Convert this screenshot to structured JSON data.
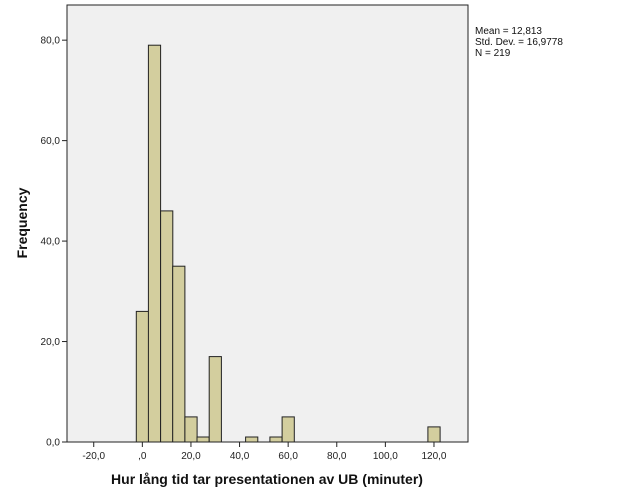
{
  "chart_data": {
    "type": "bar",
    "subtype": "histogram",
    "xlabel": "Hur lång tid tar presentationen av UB (minuter)",
    "ylabel": "Frequency",
    "xlim": [
      -31,
      134
    ],
    "ylim": [
      0,
      87
    ],
    "x_ticks": [
      -20,
      0,
      20,
      40,
      60,
      80,
      100,
      120
    ],
    "x_tick_labels": [
      "-20,0",
      ",0",
      "20,0",
      "40,0",
      "60,0",
      "80,0",
      "100,0",
      "120,0"
    ],
    "y_ticks": [
      0,
      20,
      40,
      60,
      80
    ],
    "y_tick_labels": [
      "0,0",
      "20,0",
      "40,0",
      "60,0",
      "80,0"
    ],
    "bin_width": 5,
    "bins": [
      {
        "start": -2.5,
        "end": 2.5,
        "count": 26
      },
      {
        "start": 2.5,
        "end": 7.5,
        "count": 79
      },
      {
        "start": 7.5,
        "end": 12.5,
        "count": 46
      },
      {
        "start": 12.5,
        "end": 17.5,
        "count": 35
      },
      {
        "start": 17.5,
        "end": 22.5,
        "count": 5
      },
      {
        "start": 22.5,
        "end": 27.5,
        "count": 1
      },
      {
        "start": 27.5,
        "end": 32.5,
        "count": 17
      },
      {
        "start": 42.5,
        "end": 47.5,
        "count": 1
      },
      {
        "start": 52.5,
        "end": 57.5,
        "count": 1
      },
      {
        "start": 57.5,
        "end": 62.5,
        "count": 5
      },
      {
        "start": 117.5,
        "end": 122.5,
        "count": 3
      }
    ],
    "stats": {
      "mean": "Mean = 12,813",
      "std_dev": "Std. Dev. = 16,9778",
      "n": "N = 219"
    },
    "grid": false,
    "colors": {
      "bar_fill": "#d3ce9e",
      "bar_stroke": "#222222",
      "plot_background": "#f0f0f0"
    }
  }
}
